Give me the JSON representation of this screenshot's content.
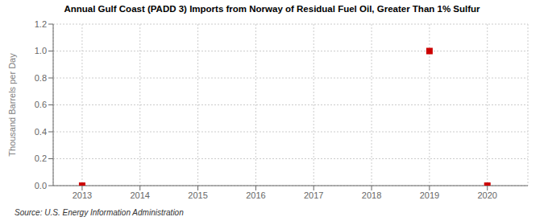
{
  "chart_data": {
    "type": "scatter",
    "title": "Annual Gulf Coast (PADD 3) Imports from Norway of Residual Fuel Oil, Greater Than 1% Sulfur",
    "ylabel": "Thousand Barrels per Day",
    "source": "Source: U.S. Energy Information Administration",
    "x": [
      2013,
      2019,
      2020
    ],
    "values": [
      0.0,
      1.0,
      0.0
    ],
    "color": "#cc0000",
    "marker": "square",
    "xlim": [
      2012.5,
      2020.7
    ],
    "ylim": [
      0.0,
      1.2
    ],
    "xticks": [
      2013,
      2014,
      2015,
      2016,
      2017,
      2018,
      2019,
      2020
    ],
    "yticks": [
      {
        "value": 0.0,
        "label": "0.0"
      },
      0.2,
      0.4,
      0.6,
      0.8,
      {
        "value": 1.0,
        "label": "1.0"
      },
      1.2
    ],
    "grid": true
  }
}
